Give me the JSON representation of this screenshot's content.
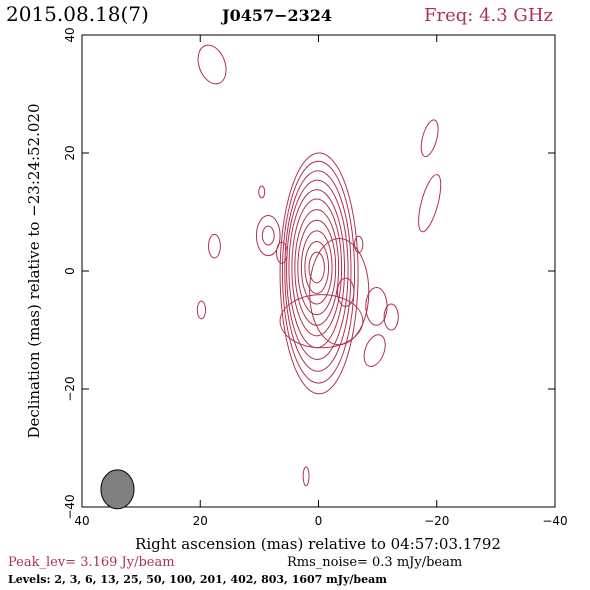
{
  "header": {
    "date": "2015.08.18(7)",
    "source": "J0457−2324",
    "frequency": "Freq: 4.3 GHz"
  },
  "footer": {
    "peak_level": "Peak_lev=  3.169 Jy/beam",
    "rms_noise": "Rms_noise=  0.3 mJy/beam",
    "levels": "Levels:   2,   3,   6,  13,  25,  50, 100, 201, 402, 803, 1607 mJy/beam"
  },
  "colors": {
    "contour": "#b0304f",
    "beam": "#808080",
    "axes": "#000000"
  },
  "chart_data": {
    "type": "contour",
    "title": "J0457−2324",
    "xlabel": "Right ascension (mas) relative to 04:57:03.1792",
    "ylabel": "Declination (mas) relative to −23:24:52.020",
    "xlim": [
      40,
      -40
    ],
    "ylim": [
      -40,
      40
    ],
    "x_ticks": [
      40,
      20,
      0,
      -20,
      -40
    ],
    "y_ticks": [
      -40,
      -20,
      0,
      20,
      40
    ],
    "x_tick_labels": [
      "40",
      "20",
      "0",
      "−20",
      "−40"
    ],
    "y_tick_labels": [
      "−40",
      "−20",
      "0",
      "20",
      "40"
    ],
    "peak_jy_per_beam": 3.169,
    "rms_mjy_per_beam": 0.3,
    "levels_mjy_per_beam": [
      2,
      3,
      6,
      13,
      25,
      50,
      100,
      201,
      402,
      803,
      1607
    ],
    "beam": {
      "x": 34,
      "y": -37,
      "major_mas": 4.4,
      "minor_mas": 2.0,
      "pa_deg": 0
    },
    "core": {
      "x": 0.3,
      "y": 0.6,
      "rings": [
        {
          "w": 6.6,
          "h": 20.4,
          "dx": -0.4,
          "dy": -1.0
        },
        {
          "w": 6.1,
          "h": 18.8,
          "dx": -0.3,
          "dy": -0.8
        },
        {
          "w": 5.6,
          "h": 17.0,
          "dx": -0.2,
          "dy": -0.6
        },
        {
          "w": 5.2,
          "h": 15.2,
          "dx": -0.1,
          "dy": -0.4
        },
        {
          "w": 4.7,
          "h": 13.4,
          "dx": 0,
          "dy": -0.2
        },
        {
          "w": 4.2,
          "h": 11.6,
          "dx": 0,
          "dy": 0
        },
        {
          "w": 3.7,
          "h": 9.8,
          "dx": 0,
          "dy": 0
        },
        {
          "w": 3.2,
          "h": 8.0,
          "dx": 0,
          "dy": 0
        },
        {
          "w": 2.6,
          "h": 6.2,
          "dx": 0,
          "dy": 0
        },
        {
          "w": 2.0,
          "h": 4.4,
          "dx": 0,
          "dy": 0
        },
        {
          "w": 1.3,
          "h": 2.6,
          "dx": 0,
          "dy": 0
        }
      ],
      "extension": {
        "x": -3.5,
        "y": -3.5,
        "w": 5.0,
        "h": 9.0
      },
      "tail": {
        "x": -0.5,
        "y": -8.5,
        "w": 7.0,
        "h": 4.5
      }
    },
    "islands": [
      {
        "x": 18,
        "y": 35,
        "w": 2.2,
        "h": 3.4,
        "rot": -20
      },
      {
        "x": 17.6,
        "y": 4.2,
        "w": 1.0,
        "h": 2.0,
        "rot": 0
      },
      {
        "x": 9.6,
        "y": 13.4,
        "w": 0.5,
        "h": 1.0,
        "rot": 0
      },
      {
        "x": 8.5,
        "y": 6,
        "w": 2.0,
        "h": 3.4,
        "rot": 0
      },
      {
        "x": 8.5,
        "y": 6,
        "w": 1.0,
        "h": 1.6,
        "rot": 0
      },
      {
        "x": 6.2,
        "y": 3.1,
        "w": 0.9,
        "h": 1.8,
        "rot": 0
      },
      {
        "x": 19.8,
        "y": -6.6,
        "w": 0.7,
        "h": 1.5,
        "rot": 0
      },
      {
        "x": -4.6,
        "y": -3.6,
        "w": 1.4,
        "h": 2.4,
        "rot": 0
      },
      {
        "x": -6.8,
        "y": 4.5,
        "w": 0.7,
        "h": 1.4,
        "rot": 0
      },
      {
        "x": -9.8,
        "y": -6,
        "w": 1.8,
        "h": 3.2,
        "rot": 0
      },
      {
        "x": -12.3,
        "y": -7.8,
        "w": 1.2,
        "h": 2.2,
        "rot": 0
      },
      {
        "x": -9.5,
        "y": -13.5,
        "w": 1.6,
        "h": 2.8,
        "rot": 20
      },
      {
        "x": -18.8,
        "y": 22.5,
        "w": 1.2,
        "h": 3.2,
        "rot": 15
      },
      {
        "x": -18.8,
        "y": 11.5,
        "w": 1.4,
        "h": 5.0,
        "rot": 15
      },
      {
        "x": 2.1,
        "y": -34.8,
        "w": 0.5,
        "h": 1.6,
        "rot": 0
      }
    ]
  }
}
